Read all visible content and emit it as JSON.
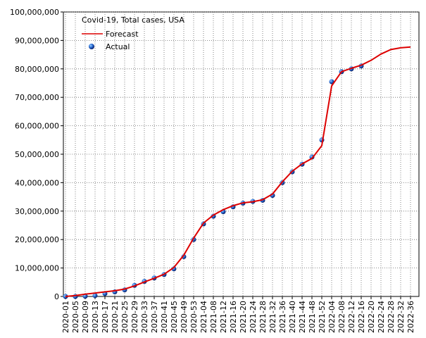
{
  "chart_data": {
    "type": "line",
    "title": "Covid-19, Total cases, USA",
    "categories": [
      "2020-01",
      "2020-05",
      "2020-09",
      "2020-13",
      "2020-17",
      "2020-21",
      "2020-25",
      "2020-29",
      "2020-33",
      "2020-37",
      "2020-41",
      "2020-45",
      "2020-49",
      "2020-53",
      "2021-04",
      "2021-08",
      "2021-12",
      "2021-16",
      "2021-20",
      "2021-24",
      "2021-28",
      "2021-32",
      "2021-36",
      "2021-40",
      "2021-44",
      "2021-48",
      "2021-52",
      "2022-04",
      "2022-08",
      "2022-12",
      "2022-16",
      "2022-20",
      "2022-24",
      "2022-28",
      "2022-32",
      "2022-36"
    ],
    "series": [
      {
        "name": "Forecast",
        "color": "#dd0000",
        "style": "line",
        "values": [
          0,
          300000,
          800000,
          1200000,
          1600000,
          2000000,
          2600000,
          3700000,
          5100000,
          6400000,
          7800000,
          10200000,
          14500000,
          20500000,
          25800000,
          28600000,
          30500000,
          31900000,
          32900000,
          33300000,
          34000000,
          36000000,
          40300000,
          44000000,
          46600000,
          48500000,
          53000000,
          74000000,
          79000000,
          80200000,
          81300000,
          83000000,
          85200000,
          86800000,
          87400000,
          87700000
        ]
      },
      {
        "name": "Actual",
        "color": "#1f5fcf",
        "style": "markers",
        "values": [
          0,
          0,
          100000,
          300000,
          1000000,
          1600000,
          2300000,
          3900000,
          5300000,
          6500000,
          7700000,
          9700000,
          14000000,
          20000000,
          25500000,
          28200000,
          29800000,
          31500000,
          32800000,
          33400000,
          33800000,
          35500000,
          40000000,
          43800000,
          46500000,
          49000000,
          55000000,
          75500000,
          79000000,
          80000000,
          81000000,
          null,
          null,
          null,
          null,
          null
        ]
      }
    ],
    "ylim": [
      0,
      100000000
    ],
    "yticks": [
      {
        "value": 0,
        "label": "0"
      },
      {
        "value": 10000000,
        "label": "10,000,000"
      },
      {
        "value": 20000000,
        "label": "20,000,000"
      },
      {
        "value": 30000000,
        "label": "30,000,000"
      },
      {
        "value": 40000000,
        "label": "40,000,000"
      },
      {
        "value": 50000000,
        "label": "50,000,000"
      },
      {
        "value": 60000000,
        "label": "60,000,000"
      },
      {
        "value": 70000000,
        "label": "70,000,000"
      },
      {
        "value": 80000000,
        "label": "80,000,000"
      },
      {
        "value": 90000000,
        "label": "90,000,000"
      },
      {
        "value": 100000000,
        "label": "100,000,000"
      }
    ],
    "grid": true,
    "legend": "top-left"
  }
}
